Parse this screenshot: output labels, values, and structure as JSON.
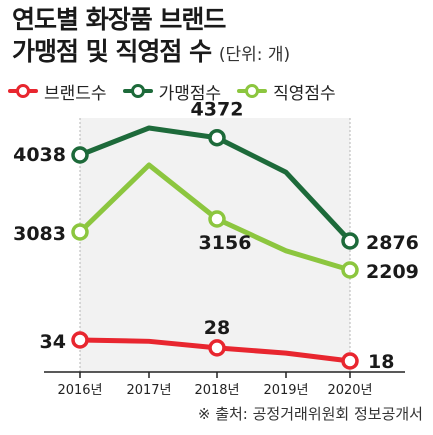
{
  "title": {
    "line1": "연도별 화장품 브랜드",
    "line2": "가맹점 및 직영점 수",
    "unit": "(단위: 개)"
  },
  "legend": [
    {
      "label": "브랜드수",
      "color": "#e8262f"
    },
    {
      "label": "가맹점수",
      "color": "#1d6a3a"
    },
    {
      "label": "직영점수",
      "color": "#8cc63f"
    }
  ],
  "source": "※ 출처: 공정거래위원회 정보공개서",
  "chart_data": {
    "type": "line",
    "categories": [
      "2016년",
      "2017년",
      "2018년",
      "2019년",
      "2020년"
    ],
    "series": [
      {
        "name": "가맹점수",
        "color": "#1d6a3a",
        "values": [
          4038,
          4560,
          4372,
          3800,
          2876
        ],
        "labels": [
          "4038",
          null,
          "4372",
          null,
          "2876"
        ]
      },
      {
        "name": "직영점수",
        "color": "#8cc63f",
        "values": [
          3083,
          3900,
          3156,
          2650,
          2209
        ],
        "labels": [
          "3083",
          null,
          "3156",
          null,
          "2209"
        ]
      },
      {
        "name": "브랜드수",
        "color": "#e8262f",
        "values": [
          34,
          33,
          28,
          24,
          18
        ],
        "labels": [
          "34",
          null,
          "28",
          null,
          "18"
        ]
      }
    ],
    "highlight_range": [
      "2016년",
      "2020년"
    ],
    "grid": false
  }
}
